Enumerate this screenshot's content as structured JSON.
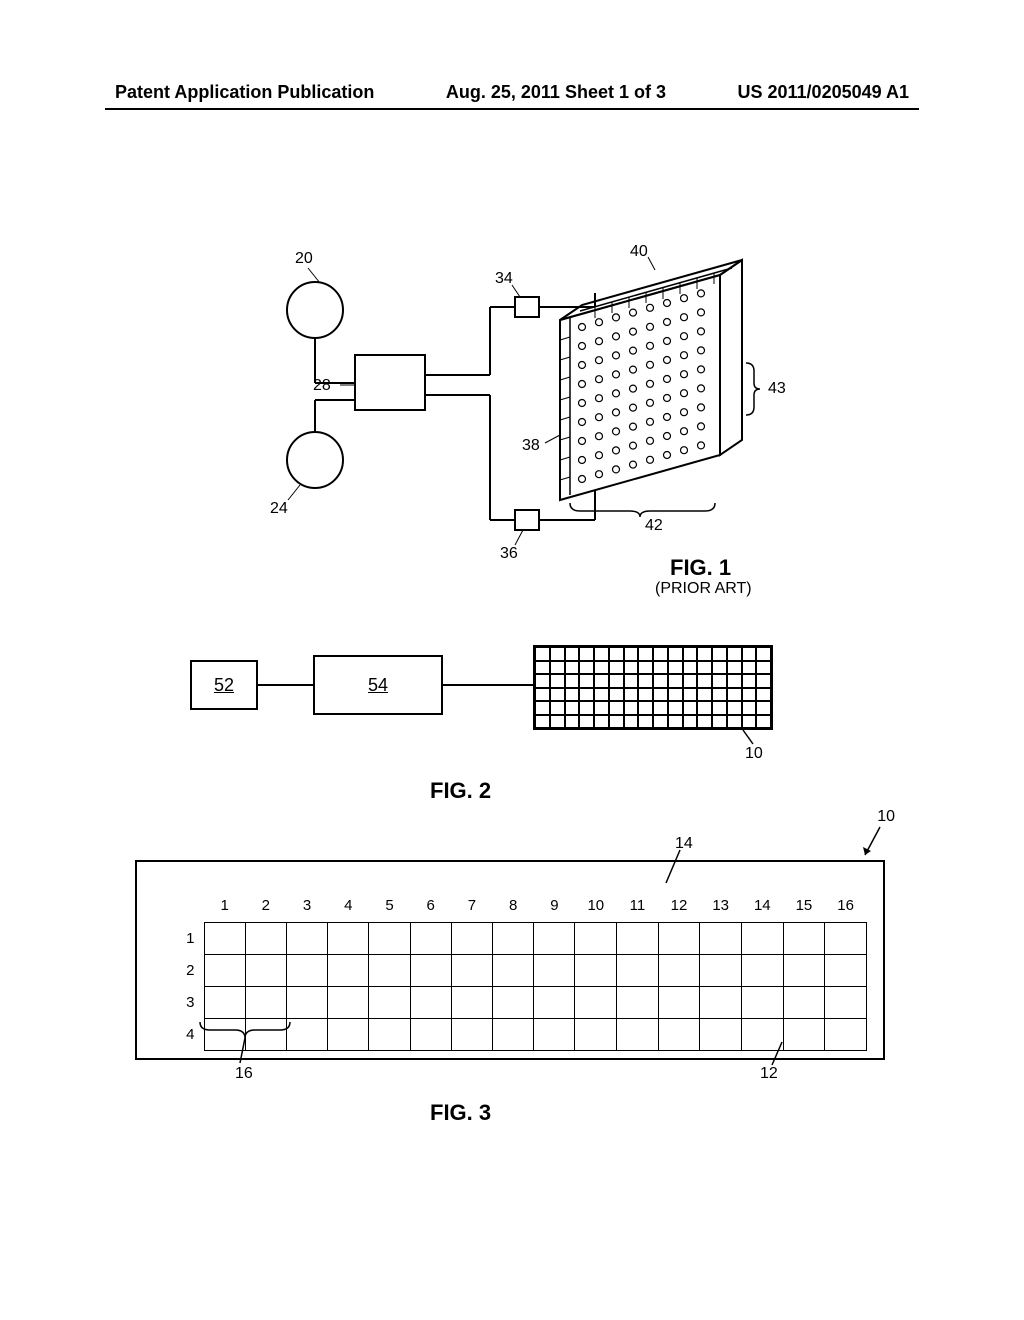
{
  "header": {
    "left": "Patent Application Publication",
    "center": "Aug. 25, 2011  Sheet 1 of 3",
    "right": "US 2011/0205049 A1"
  },
  "fig1": {
    "title": "FIG. 1",
    "subtitle": "(PRIOR ART)",
    "refs": {
      "r20": "20",
      "r24": "24",
      "r28": "28",
      "r34": "34",
      "r36": "36",
      "r38": "38",
      "r40": "40",
      "r42": "42",
      "r43": "43"
    }
  },
  "fig2": {
    "title": "FIG. 2",
    "box1": "52",
    "box2": "54",
    "ref10": "10",
    "grid": {
      "cols": 16,
      "rows": 6
    }
  },
  "fig3": {
    "title": "FIG. 3",
    "top_ref10": "10",
    "cols": [
      "1",
      "2",
      "3",
      "4",
      "5",
      "6",
      "7",
      "8",
      "9",
      "10",
      "11",
      "12",
      "13",
      "14",
      "15",
      "16"
    ],
    "rows": [
      "1",
      "2",
      "3",
      "4"
    ],
    "ref12": "12",
    "ref14": "14",
    "ref16": "16"
  },
  "colors": {
    "stroke": "#000000",
    "bg": "#ffffff"
  }
}
